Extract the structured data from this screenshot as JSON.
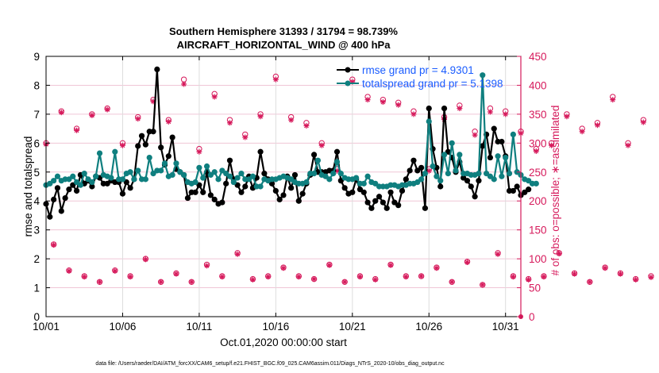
{
  "chart_data": {
    "type": "line",
    "title": "Southern Hemisphere 31393 / 31794 = 98.739%",
    "subtitle": "AIRCRAFT_HORIZONTAL_WIND @ 400 hPa",
    "xlabel": "Oct.01,2020 00:00:00 start",
    "ylabel": "rmse and totalspread",
    "ylabel_right": "# of obs: o=possible; ∗=assimilated",
    "footer": "data file: /Users/raeder/DAI/ATM_forcXX/CAM6_setup/f.e21.FHIST_BGC.f09_025.CAM6assim.011/Diags_NTrS_2020-10/obs_diag_output.nc",
    "x_ticks": [
      "10/01",
      "10/06",
      "10/11",
      "10/16",
      "10/21",
      "10/26",
      "10/31"
    ],
    "x_tick_days": [
      1,
      6,
      11,
      16,
      21,
      26,
      31
    ],
    "xlim_days": [
      1,
      32
    ],
    "ylim": [
      0,
      9
    ],
    "y_ticks": [
      "0",
      "1",
      "2",
      "3",
      "4",
      "5",
      "6",
      "7",
      "8",
      "9"
    ],
    "ylim_right": [
      0,
      450
    ],
    "y_ticks_right": [
      "0",
      "50",
      "100",
      "150",
      "200",
      "250",
      "300",
      "350",
      "400",
      "450"
    ],
    "grid": true,
    "legend_position": "top-right",
    "colors": {
      "rmse": "#000000",
      "spread": "#0f7f7f",
      "obs": "#d6195b",
      "legend_text": "#1a5cff",
      "grid_right": "#f0c6d6"
    },
    "series": [
      {
        "name": "rmse grand pr = 4.9301",
        "key": "rmse",
        "start_day": 1.0,
        "step_days": 0.25,
        "values": [
          3.9,
          3.45,
          4.05,
          4.45,
          3.65,
          4.1,
          4.4,
          4.55,
          4.35,
          4.9,
          4.6,
          4.7,
          4.5,
          4.85,
          4.8,
          4.6,
          4.6,
          4.7,
          4.65,
          4.65,
          4.25,
          4.65,
          4.45,
          4.75,
          5.9,
          6.25,
          5.95,
          6.4,
          6.4,
          8.55,
          5.85,
          5.25,
          5.55,
          6.2,
          5.1,
          5.0,
          4.9,
          4.1,
          4.3,
          4.3,
          4.55,
          4.3,
          5.0,
          4.2,
          4.05,
          3.9,
          3.95,
          4.6,
          5.4,
          4.75,
          4.55,
          4.3,
          4.5,
          4.85,
          4.45,
          4.8,
          5.7,
          4.95,
          4.75,
          4.6,
          4.35,
          4.05,
          4.2,
          4.85,
          4.45,
          4.9,
          4.0,
          4.25,
          4.6,
          4.9,
          5.6,
          5.0,
          5.0,
          5.0,
          5.05,
          5.05,
          5.7,
          4.7,
          4.45,
          4.25,
          4.3,
          4.75,
          4.4,
          4.3,
          3.95,
          3.75,
          4.0,
          4.15,
          3.95,
          3.75,
          4.3,
          3.95,
          3.85,
          4.35,
          4.75,
          5.05,
          5.4,
          5.05,
          5.15,
          3.75,
          7.2,
          5.8,
          5.15,
          4.5,
          7.2,
          5.7,
          5.5,
          5.0,
          5.35,
          4.8,
          4.7,
          4.5,
          4.15,
          4.7,
          5.9,
          6.3,
          5.5,
          6.5,
          6.05,
          6.05,
          5.55,
          4.35,
          4.35,
          4.5,
          4.2,
          4.3,
          4.4
        ]
      },
      {
        "name": "totalspread grand pr = 5.1398",
        "key": "spread",
        "start_day": 1.0,
        "step_days": 0.25,
        "values": [
          4.55,
          4.6,
          4.7,
          4.85,
          4.7,
          4.75,
          4.75,
          4.85,
          4.65,
          4.55,
          4.95,
          4.75,
          4.65,
          4.85,
          5.65,
          4.9,
          4.85,
          4.8,
          5.7,
          4.75,
          4.75,
          4.95,
          5.0,
          4.75,
          5.05,
          4.75,
          4.75,
          5.5,
          4.95,
          5.05,
          5.05,
          5.3,
          4.85,
          4.9,
          5.3,
          5.0,
          4.9,
          4.65,
          4.6,
          4.65,
          5.15,
          4.8,
          5.2,
          4.9,
          5.0,
          4.75,
          5.05,
          4.95,
          4.85,
          4.65,
          4.8,
          4.95,
          4.75,
          4.75,
          4.85,
          4.5,
          4.5,
          4.75,
          4.7,
          4.75,
          4.75,
          4.8,
          4.85,
          4.8,
          4.75,
          4.65,
          4.6,
          4.6,
          4.65,
          4.95,
          4.95,
          5.4,
          4.9,
          4.85,
          4.75,
          4.95,
          5.35,
          4.95,
          4.8,
          4.75,
          4.75,
          4.8,
          4.6,
          4.6,
          4.85,
          4.65,
          4.6,
          4.5,
          4.5,
          4.5,
          4.55,
          4.55,
          4.5,
          4.55,
          4.55,
          4.6,
          4.6,
          4.65,
          4.75,
          4.95,
          6.75,
          5.2,
          4.85,
          4.7,
          5.6,
          4.95,
          6.0,
          5.05,
          5.6,
          4.95,
          4.95,
          4.9,
          4.9,
          4.95,
          8.35,
          4.95,
          4.85,
          4.75,
          5.55,
          4.85,
          5.5,
          4.95,
          6.3,
          5.0,
          4.9,
          4.75,
          4.7,
          4.6,
          4.6
        ]
      }
    ],
    "obs_counts": {
      "axis": "right",
      "start_day": 1.0,
      "step_days": 0.5,
      "possible": [
        300,
        125,
        355,
        80,
        325,
        70,
        350,
        60,
        360,
        80,
        300,
        70,
        345,
        100,
        375,
        60,
        340,
        75,
        410,
        60,
        290,
        90,
        385,
        70,
        340,
        110,
        315,
        65,
        350,
        70,
        415,
        85,
        345,
        70,
        335,
        65,
        300,
        90,
        255,
        60,
        410,
        70,
        380,
        65,
        375,
        90,
        370,
        70,
        355,
        70,
        255,
        85,
        345,
        60,
        365,
        95,
        320,
        55,
        360,
        110,
        355,
        70,
        320,
        65,
        290,
        70,
        300,
        110,
        350,
        75,
        325,
        60,
        335,
        85,
        380,
        75,
        300,
        65,
        340,
        70
      ],
      "assimilated": [
        298,
        124,
        353,
        79,
        322,
        69,
        348,
        60,
        358,
        79,
        296,
        69,
        342,
        99,
        372,
        60,
        337,
        74,
        402,
        60,
        285,
        88,
        380,
        69,
        335,
        108,
        310,
        64,
        346,
        69,
        410,
        84,
        340,
        69,
        330,
        65,
        296,
        89,
        252,
        60,
        406,
        69,
        375,
        64,
        371,
        89,
        366,
        69,
        350,
        70,
        252,
        84,
        341,
        60,
        360,
        94,
        314,
        55,
        354,
        108,
        350,
        69,
        317,
        64,
        286,
        69,
        296,
        109,
        346,
        74,
        320,
        60,
        331,
        84,
        375,
        74,
        296,
        64,
        336,
        68
      ]
    }
  }
}
